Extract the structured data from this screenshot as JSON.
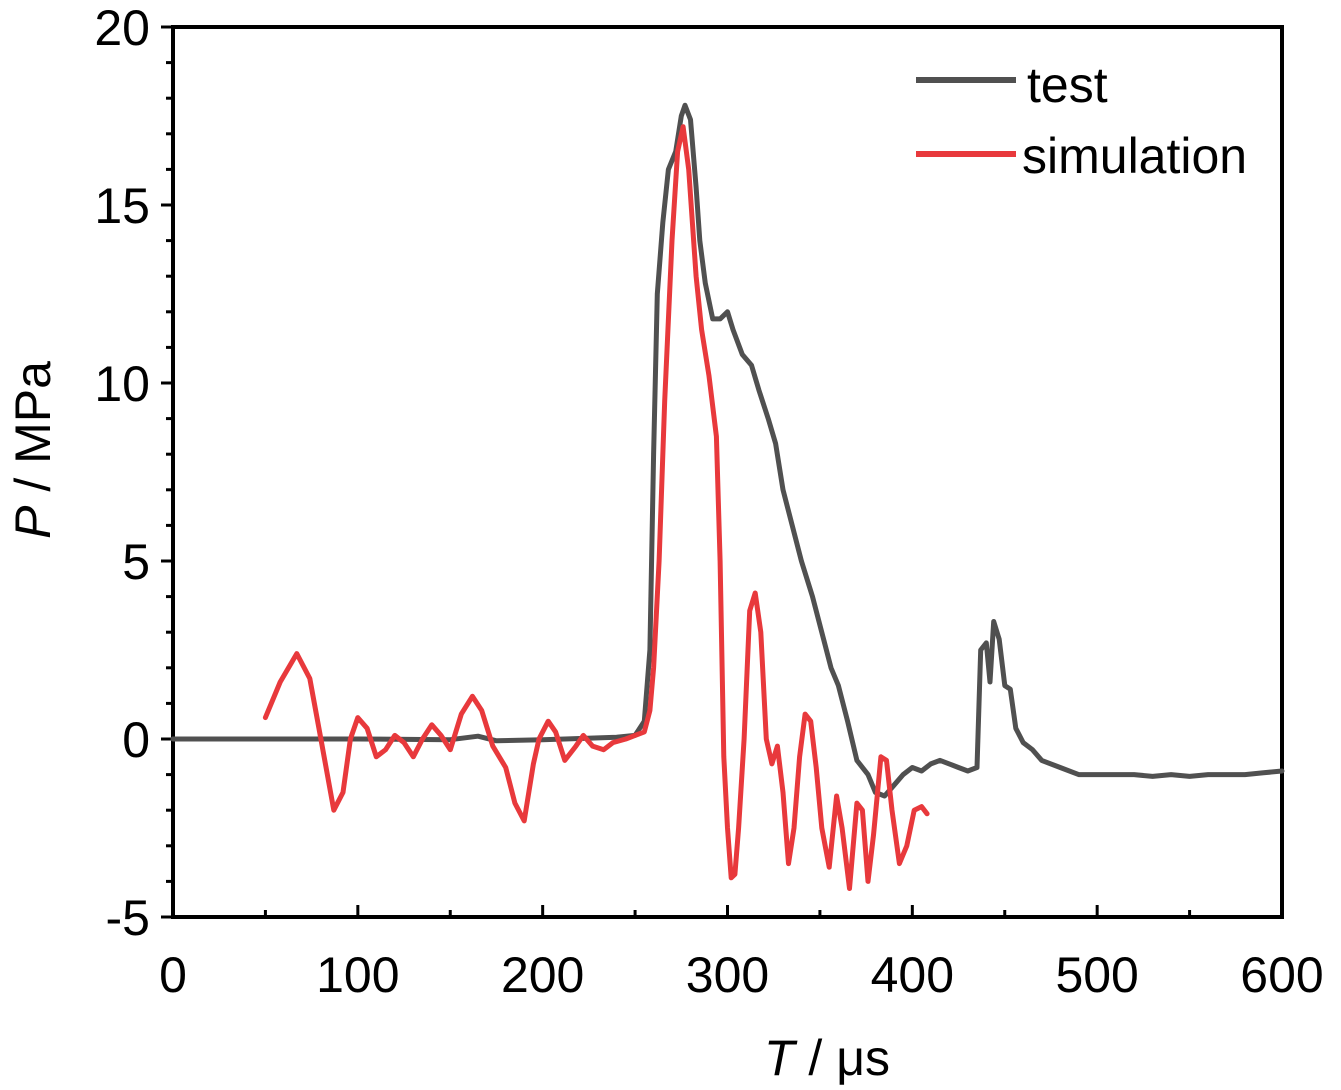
{
  "chart_data": {
    "type": "line",
    "title": "",
    "xlabel": {
      "symbol": "T",
      "unit": " / μs"
    },
    "ylabel": {
      "symbol": "P",
      "unit": " / MPa"
    },
    "xlim": [
      0,
      600
    ],
    "ylim": [
      -5,
      20
    ],
    "x_ticks": [
      0,
      100,
      200,
      300,
      400,
      500,
      600
    ],
    "y_ticks": [
      -5,
      0,
      5,
      10,
      15,
      20
    ],
    "grid": false,
    "legend": "top-right",
    "series": [
      {
        "name": "test",
        "color": "#505050",
        "points": [
          [
            0,
            0
          ],
          [
            50,
            0
          ],
          [
            100,
            0
          ],
          [
            150,
            -0.02
          ],
          [
            165,
            0.08
          ],
          [
            175,
            -0.05
          ],
          [
            200,
            -0.02
          ],
          [
            240,
            0.05
          ],
          [
            250,
            0.1
          ],
          [
            255,
            0.5
          ],
          [
            258,
            2.5
          ],
          [
            260,
            8
          ],
          [
            262,
            12.5
          ],
          [
            265,
            14.5
          ],
          [
            268,
            16
          ],
          [
            272,
            16.5
          ],
          [
            275,
            17.5
          ],
          [
            277,
            17.8
          ],
          [
            280,
            17.4
          ],
          [
            283,
            15.5
          ],
          [
            285,
            14
          ],
          [
            288,
            12.8
          ],
          [
            292,
            11.8
          ],
          [
            296,
            11.8
          ],
          [
            300,
            12
          ],
          [
            303,
            11.5
          ],
          [
            308,
            10.8
          ],
          [
            313,
            10.5
          ],
          [
            317,
            9.8
          ],
          [
            322,
            9
          ],
          [
            326,
            8.3
          ],
          [
            330,
            7
          ],
          [
            335,
            6
          ],
          [
            340,
            5
          ],
          [
            346,
            4
          ],
          [
            352,
            2.8
          ],
          [
            356,
            2
          ],
          [
            360,
            1.5
          ],
          [
            365,
            0.5
          ],
          [
            370,
            -0.6
          ],
          [
            376,
            -1
          ],
          [
            380,
            -1.5
          ],
          [
            385,
            -1.6
          ],
          [
            390,
            -1.3
          ],
          [
            395,
            -1
          ],
          [
            400,
            -0.8
          ],
          [
            405,
            -0.9
          ],
          [
            410,
            -0.7
          ],
          [
            415,
            -0.6
          ],
          [
            420,
            -0.7
          ],
          [
            425,
            -0.8
          ],
          [
            430,
            -0.9
          ],
          [
            435,
            -0.8
          ],
          [
            437,
            2.5
          ],
          [
            440,
            2.7
          ],
          [
            442,
            1.6
          ],
          [
            444,
            3.3
          ],
          [
            447,
            2.8
          ],
          [
            450,
            1.5
          ],
          [
            453,
            1.4
          ],
          [
            456,
            0.3
          ],
          [
            460,
            -0.1
          ],
          [
            465,
            -0.3
          ],
          [
            470,
            -0.6
          ],
          [
            480,
            -0.8
          ],
          [
            490,
            -1
          ],
          [
            500,
            -1
          ],
          [
            510,
            -1
          ],
          [
            520,
            -1
          ],
          [
            530,
            -1.05
          ],
          [
            540,
            -1
          ],
          [
            550,
            -1.05
          ],
          [
            560,
            -1
          ],
          [
            570,
            -1
          ],
          [
            580,
            -1
          ],
          [
            590,
            -0.95
          ],
          [
            600,
            -0.9
          ]
        ]
      },
      {
        "name": "simulation",
        "color": "#e8393c",
        "points": [
          [
            50,
            0.6
          ],
          [
            58,
            1.6
          ],
          [
            67,
            2.4
          ],
          [
            74,
            1.7
          ],
          [
            80,
            0
          ],
          [
            87,
            -2
          ],
          [
            92,
            -1.5
          ],
          [
            96,
            0
          ],
          [
            100,
            0.6
          ],
          [
            105,
            0.3
          ],
          [
            110,
            -0.5
          ],
          [
            115,
            -0.3
          ],
          [
            120,
            0.1
          ],
          [
            125,
            -0.1
          ],
          [
            130,
            -0.5
          ],
          [
            135,
            0
          ],
          [
            140,
            0.4
          ],
          [
            145,
            0.1
          ],
          [
            150,
            -0.3
          ],
          [
            156,
            0.7
          ],
          [
            162,
            1.2
          ],
          [
            167,
            0.8
          ],
          [
            173,
            -0.2
          ],
          [
            180,
            -0.8
          ],
          [
            185,
            -1.8
          ],
          [
            190,
            -2.3
          ],
          [
            195,
            -0.7
          ],
          [
            198,
            0
          ],
          [
            203,
            0.5
          ],
          [
            207,
            0.2
          ],
          [
            212,
            -0.6
          ],
          [
            218,
            -0.2
          ],
          [
            222,
            0.1
          ],
          [
            227,
            -0.2
          ],
          [
            233,
            -0.3
          ],
          [
            238,
            -0.1
          ],
          [
            245,
            0
          ],
          [
            250,
            0.1
          ],
          [
            255,
            0.2
          ],
          [
            258,
            0.8
          ],
          [
            260,
            2
          ],
          [
            263,
            5
          ],
          [
            266,
            9.5
          ],
          [
            270,
            14
          ],
          [
            273,
            16.5
          ],
          [
            276,
            17.2
          ],
          [
            279,
            16
          ],
          [
            283,
            13
          ],
          [
            286,
            11.5
          ],
          [
            290,
            10.2
          ],
          [
            294,
            8.5
          ],
          [
            296,
            5
          ],
          [
            298,
            -0.5
          ],
          [
            300,
            -2.5
          ],
          [
            302,
            -3.9
          ],
          [
            304,
            -3.8
          ],
          [
            306,
            -2.5
          ],
          [
            309,
            0
          ],
          [
            312,
            3.6
          ],
          [
            315,
            4.1
          ],
          [
            318,
            3
          ],
          [
            321,
            0
          ],
          [
            324,
            -0.7
          ],
          [
            327,
            -0.2
          ],
          [
            330,
            -1.5
          ],
          [
            333,
            -3.5
          ],
          [
            336,
            -2.5
          ],
          [
            339,
            -0.5
          ],
          [
            342,
            0.7
          ],
          [
            345,
            0.5
          ],
          [
            348,
            -0.8
          ],
          [
            351,
            -2.5
          ],
          [
            355,
            -3.6
          ],
          [
            359,
            -1.6
          ],
          [
            362,
            -2.5
          ],
          [
            366,
            -4.2
          ],
          [
            370,
            -1.8
          ],
          [
            373,
            -2
          ],
          [
            376,
            -4
          ],
          [
            379,
            -2.7
          ],
          [
            383,
            -0.5
          ],
          [
            386,
            -0.6
          ],
          [
            389,
            -2
          ],
          [
            393,
            -3.5
          ],
          [
            397,
            -3
          ],
          [
            401,
            -2
          ],
          [
            405,
            -1.9
          ],
          [
            408,
            -2.1
          ]
        ]
      }
    ]
  }
}
